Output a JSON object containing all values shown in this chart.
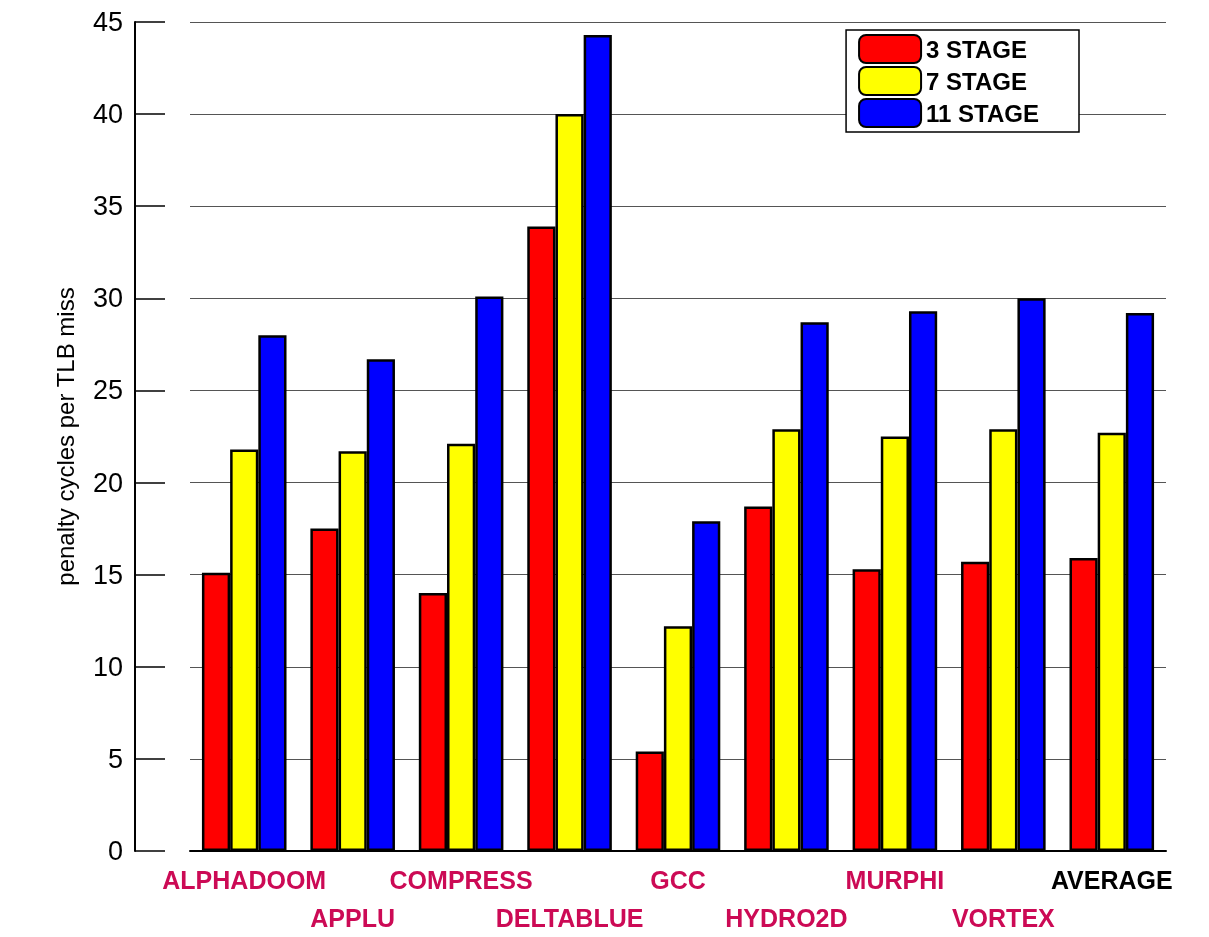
{
  "chart_data": {
    "type": "bar",
    "ylabel": "penalty cycles per TLB miss",
    "categories": [
      "ALPHADOOM",
      "APPLU",
      "COMPRESS",
      "DELTABLUE",
      "GCC",
      "HYDRO2D",
      "MURPHI",
      "VORTEX",
      "AVERAGE"
    ],
    "series": [
      {
        "name": "3 STAGE",
        "color": "#ff0000",
        "values": [
          15.1,
          17.5,
          14.0,
          33.9,
          5.4,
          18.7,
          15.3,
          15.7,
          15.9
        ]
      },
      {
        "name": "7 STAGE",
        "color": "#ffff00",
        "values": [
          21.8,
          21.7,
          22.1,
          40.0,
          12.2,
          22.9,
          22.5,
          22.9,
          22.7
        ]
      },
      {
        "name": "11 STAGE",
        "color": "#0000ff",
        "values": [
          28.0,
          26.7,
          30.1,
          44.3,
          17.9,
          28.7,
          29.3,
          30.0,
          29.2
        ]
      }
    ],
    "ylim": [
      0,
      45
    ],
    "yticks": [
      0,
      5,
      10,
      15,
      20,
      25,
      30,
      35,
      40,
      45
    ],
    "grid": "y",
    "legend": "top right"
  }
}
